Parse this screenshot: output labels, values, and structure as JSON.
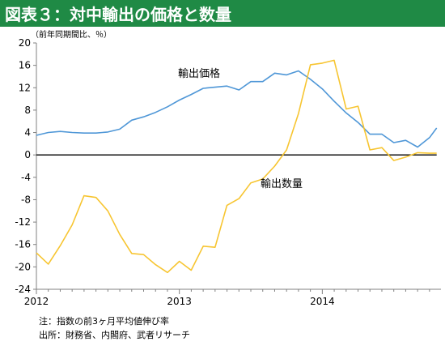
{
  "header": {
    "title": "図表３：対中輸出の価格と数量"
  },
  "notes": {
    "note": "注：指数の前3ヶ月平均値伸び率",
    "source": "出所：財務省、内閣府、武者リサーチ"
  },
  "chart_data": {
    "type": "line",
    "title": "",
    "unit_label": "（前年同期間比、％）",
    "xlabel": "",
    "ylabel": "",
    "ylim": [
      -24,
      20
    ],
    "yticks": [
      20,
      16,
      12,
      8,
      4,
      0,
      -4,
      -8,
      -12,
      -16,
      -20,
      -24
    ],
    "xlim": [
      2012.0,
      2014.83
    ],
    "xticks": [
      {
        "label": "2012",
        "value": 2012
      },
      {
        "label": "2013",
        "value": 2013
      },
      {
        "label": "2014",
        "value": 2014
      }
    ],
    "colors": {
      "price": "#4f97d7",
      "quantity": "#f7c531",
      "zero_line": "#000000"
    },
    "series": [
      {
        "name": "輸出価格",
        "color": "#4f97d7",
        "x": [
          2012.0,
          2012.083,
          2012.167,
          2012.25,
          2012.333,
          2012.417,
          2012.5,
          2012.583,
          2012.667,
          2012.75,
          2012.833,
          2012.917,
          2013.0,
          2013.083,
          2013.167,
          2013.25,
          2013.333,
          2013.417,
          2013.5,
          2013.583,
          2013.667,
          2013.75,
          2013.833,
          2013.917,
          2014.0,
          2014.083,
          2014.167,
          2014.25,
          2014.333,
          2014.417,
          2014.5,
          2014.583,
          2014.667,
          2014.75
        ],
        "values": [
          3.5,
          4.0,
          4.2,
          4.0,
          3.9,
          3.9,
          4.1,
          4.6,
          6.2,
          6.8,
          7.6,
          8.6,
          9.8,
          10.8,
          11.9,
          12.1,
          12.3,
          11.6,
          13.1,
          13.1,
          14.6,
          14.3,
          15.0,
          13.5,
          11.8,
          9.6,
          7.5,
          5.8,
          3.7,
          3.7,
          2.2,
          2.6,
          1.4,
          3.1
        ],
        "extra": [
          [
            2014.8,
            4.8
          ]
        ]
      },
      {
        "name": "輸出数量",
        "color": "#f7c531",
        "x": [
          2012.0,
          2012.083,
          2012.167,
          2012.25,
          2012.333,
          2012.417,
          2012.5,
          2012.583,
          2012.667,
          2012.75,
          2012.833,
          2012.917,
          2013.0,
          2013.083,
          2013.167,
          2013.25,
          2013.333,
          2013.417,
          2013.5,
          2013.583,
          2013.667,
          2013.75,
          2013.833,
          2013.917,
          2014.0,
          2014.083,
          2014.167,
          2014.25,
          2014.333,
          2014.417,
          2014.5,
          2014.583,
          2014.667,
          2014.75,
          2014.8
        ],
        "values": [
          -17.5,
          -19.5,
          -16.2,
          -12.5,
          -7.3,
          -7.6,
          -10.0,
          -14.2,
          -17.6,
          -17.8,
          -19.6,
          -21.0,
          -19.0,
          -20.6,
          -16.3,
          -16.5,
          -9.0,
          -7.8,
          -5.0,
          -4.3,
          -2.0,
          0.9,
          7.4,
          16.1,
          16.4,
          16.9,
          8.2,
          8.7,
          0.9,
          1.3,
          -1.0,
          -0.4,
          0.4,
          0.3,
          0.3
        ]
      }
    ],
    "annotations": [
      {
        "text": "輸出価格",
        "series": "price"
      },
      {
        "text": "輸出数量",
        "series": "quantity"
      }
    ]
  }
}
